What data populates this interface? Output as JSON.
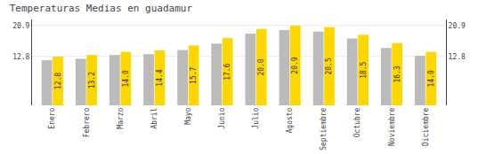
{
  "chart_data": {
    "type": "bar",
    "title": "Temperaturas Medias en guadamur",
    "categories": [
      "Enero",
      "Febrero",
      "Marzo",
      "Abril",
      "Mayo",
      "Junio",
      "Julio",
      "Agosto",
      "Septiembre",
      "Octubre",
      "Noviembre",
      "Diciembre"
    ],
    "series": [
      {
        "color": "#BBBBBB",
        "values": [
          11.8,
          12.2,
          13.2,
          13.4,
          14.5,
          16.2,
          18.8,
          19.7,
          19.3,
          17.5,
          15.0,
          13.0
        ]
      },
      {
        "color": "#FFD700",
        "values": [
          12.8,
          13.2,
          14.0,
          14.4,
          15.7,
          17.6,
          20.0,
          20.9,
          20.5,
          18.5,
          16.3,
          14.0
        ],
        "value_labels": [
          "12.8",
          "13.2",
          "14.0",
          "14.4",
          "15.7",
          "17.6",
          "20.0",
          "20.9",
          "20.5",
          "18.5",
          "16.3",
          "14.0"
        ],
        "data_labels": true
      }
    ],
    "ylim": [
      0,
      22.5
    ],
    "yticks": [
      12.8,
      20.9
    ],
    "y2lim": [
      0,
      22.5
    ],
    "y2ticks": [
      12.8,
      20.9
    ],
    "grid": true
  }
}
